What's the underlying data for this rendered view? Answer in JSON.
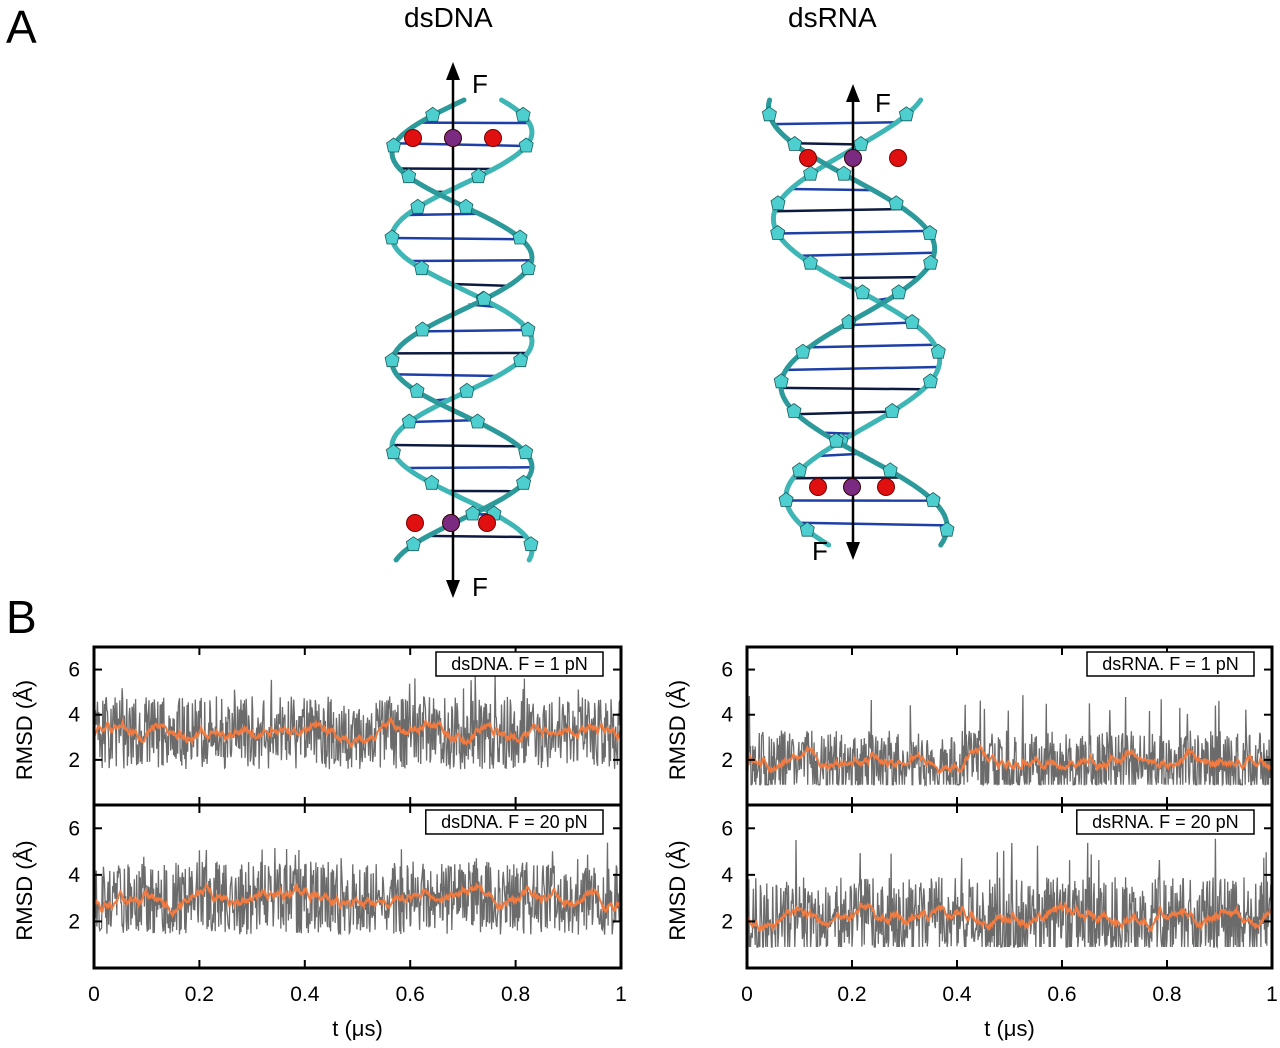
{
  "panels": {
    "a_label": "A",
    "b_label": "B"
  },
  "molecules": {
    "dna_title": "dsDNA",
    "rna_title": "dsRNA",
    "force_label": "F",
    "colors": {
      "backbone": "#3fb6b6",
      "sugar": "#4ecfcf",
      "base_dark": "#0d1a40",
      "base_blue": "#1f3fa8",
      "oxygen": "#e01010",
      "phosphorus": "#7a2a80"
    }
  },
  "chart_data": [
    {
      "type": "line",
      "legend": "dsDNA. F = 1 pN",
      "ylabel": "RMSD (Å)",
      "xlabel": "",
      "xlim": [
        0,
        1
      ],
      "ylim": [
        0,
        7
      ],
      "yticks": [
        2,
        4,
        6
      ],
      "xticks": [],
      "series": [
        {
          "name": "raw",
          "color": "#6b6b6b",
          "mean": 3.2,
          "min": 1.5,
          "max": 5.8
        },
        {
          "name": "smoothed",
          "color": "#f07a40",
          "mean": 3.2
        }
      ]
    },
    {
      "type": "line",
      "legend": "dsRNA. F = 1 pN",
      "ylabel": "RMSD (Å)",
      "xlabel": "",
      "xlim": [
        0,
        1
      ],
      "ylim": [
        0,
        7
      ],
      "yticks": [
        2,
        4,
        6
      ],
      "xticks": [],
      "series": [
        {
          "name": "raw",
          "color": "#6b6b6b",
          "mean": 1.8,
          "min": 0.9,
          "max": 4.9
        },
        {
          "name": "smoothed",
          "color": "#f07a40",
          "mean": 1.8
        }
      ]
    },
    {
      "type": "line",
      "legend": "dsDNA. F = 20 pN",
      "ylabel": "RMSD (Å)",
      "xlabel": "t (μs)",
      "xlim": [
        0,
        1
      ],
      "ylim": [
        0,
        7
      ],
      "yticks": [
        2,
        4,
        6
      ],
      "xticks": [
        "0",
        "0.2",
        "0.4",
        "0.6",
        "0.8",
        "1"
      ],
      "series": [
        {
          "name": "raw",
          "color": "#6b6b6b",
          "mean": 3.0,
          "min": 1.2,
          "max": 5.4
        },
        {
          "name": "smoothed",
          "color": "#f07a40",
          "mean": 3.0
        }
      ]
    },
    {
      "type": "line",
      "legend": "dsRNA. F = 20 pN",
      "ylabel": "RMSD (Å)",
      "xlabel": "t (μs)",
      "xlim": [
        0,
        1
      ],
      "ylim": [
        0,
        7
      ],
      "yticks": [
        2,
        4,
        6
      ],
      "xticks": [
        "0",
        "0.2",
        "0.4",
        "0.6",
        "0.8",
        "1"
      ],
      "series": [
        {
          "name": "raw",
          "color": "#6b6b6b",
          "mean": 2.1,
          "min": 0.9,
          "max": 5.7
        },
        {
          "name": "smoothed",
          "color": "#f07a40",
          "mean": 2.1
        }
      ]
    }
  ]
}
